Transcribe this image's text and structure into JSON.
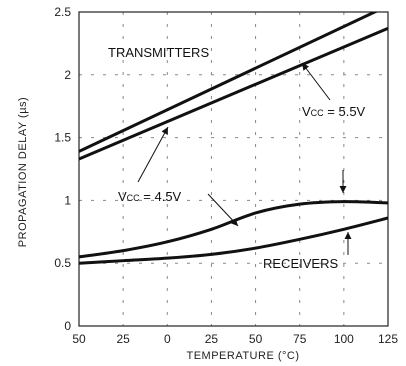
{
  "chart_data": {
    "type": "line",
    "xlabel": "TEMPERATURE (°C)",
    "ylabel": "PROPAGATION DELAY (µs)",
    "xlim": [
      -50,
      125
    ],
    "ylim": [
      0,
      2.5
    ],
    "x_ticks": [
      -50,
      -25,
      0,
      25,
      50,
      75,
      100,
      125
    ],
    "x_tick_labels": [
      "50",
      "25",
      "0",
      "25",
      "50",
      "75",
      "100",
      "125"
    ],
    "y_ticks": [
      0,
      0.5,
      1,
      1.5,
      2,
      2.5
    ],
    "y_tick_labels": [
      "0",
      "0.5",
      "1",
      "1.5",
      "2",
      "2.5"
    ],
    "grid": "dashed vertical and horizontal",
    "series": [
      {
        "group": "TRANSMITTERS",
        "condition": "VCC = 4.5V",
        "x": [
          -50,
          125
        ],
        "y": [
          1.39,
          2.55
        ]
      },
      {
        "group": "TRANSMITTERS",
        "condition": "VCC = 5.5V",
        "x": [
          -50,
          125
        ],
        "y": [
          1.33,
          2.37
        ]
      },
      {
        "group": "RECEIVERS",
        "condition": "VCC = 4.5V",
        "x": [
          -50,
          -25,
          0,
          25,
          50,
          75,
          100,
          125
        ],
        "y": [
          0.55,
          0.6,
          0.67,
          0.77,
          0.9,
          0.97,
          0.99,
          0.98
        ]
      },
      {
        "group": "RECEIVERS",
        "condition": "VCC = 5.5V",
        "x": [
          -50,
          -25,
          0,
          25,
          50,
          75,
          100,
          125
        ],
        "y": [
          0.5,
          0.52,
          0.54,
          0.57,
          0.62,
          0.69,
          0.77,
          0.86
        ]
      }
    ],
    "annotations": {
      "transmitters": "TRANSMITTERS",
      "receivers": "RECEIVERS",
      "vcc_low_base": "V",
      "vcc_low_sub": "CC",
      "vcc_low_value": " = 4.5V",
      "vcc_high_base": "V",
      "vcc_high_sub": "CC",
      "vcc_high_value": " = 5.5V"
    }
  }
}
